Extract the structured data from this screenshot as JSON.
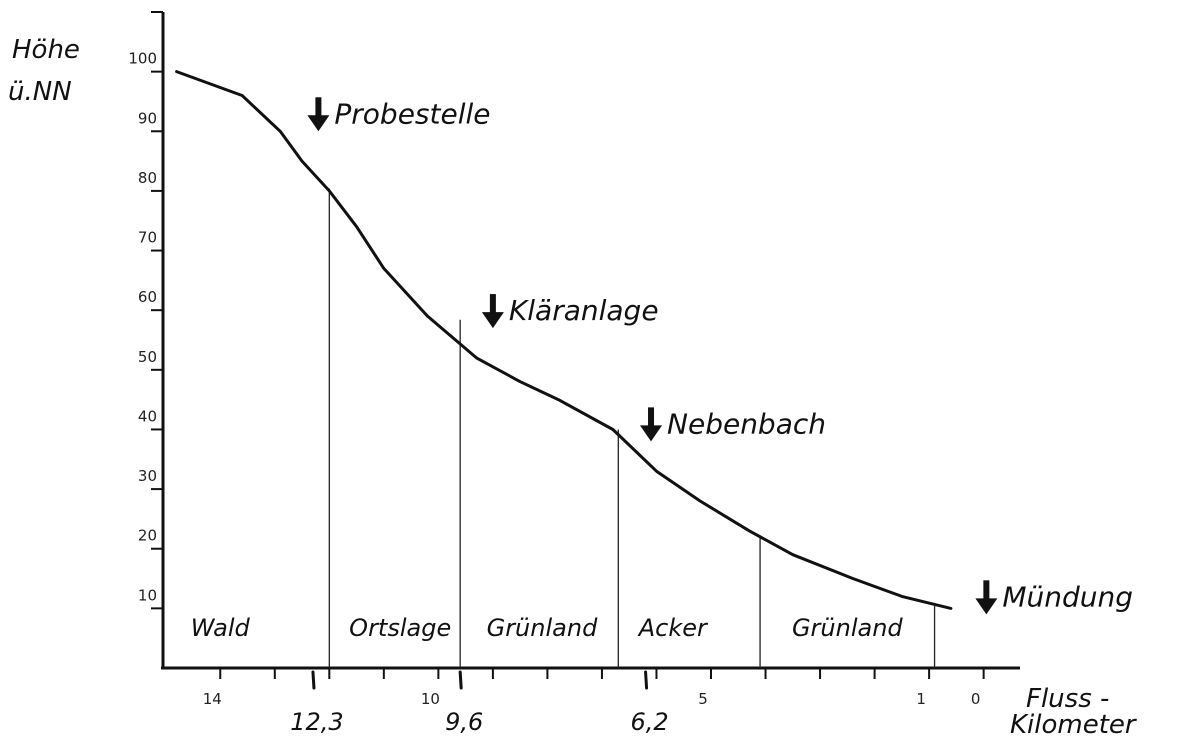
{
  "chart_data": {
    "type": "line",
    "ylabel_lines": [
      "Höhe",
      "ü.NN"
    ],
    "xlabel_lines": [
      "Fluss -",
      "Kilometer"
    ],
    "xlim": [
      15.05,
      -0.3
    ],
    "ylim": [
      0,
      110
    ],
    "y_ticks": [
      10,
      20,
      30,
      40,
      50,
      60,
      70,
      80,
      90,
      100
    ],
    "y_tick_labels": [
      "10",
      "20",
      "30",
      "40",
      "50",
      "60",
      "70",
      "80",
      "90",
      "100"
    ],
    "y_extra_tick": 110,
    "x_ticks_major": [
      14,
      10,
      5,
      1,
      0
    ],
    "x_tick_labels": [
      "14",
      "10",
      "5",
      "1",
      "0"
    ],
    "x_ticks_minor": [
      13,
      12,
      11,
      9,
      8,
      7,
      6,
      4,
      3,
      2
    ],
    "x_marks_handwritten": [
      12.3,
      9.6,
      6.2
    ],
    "x_marks_handwritten_labels": [
      "12,3",
      "9,6",
      "6,2"
    ],
    "series": [
      {
        "x": [
          14.8,
          13.6,
          12.9,
          12.5,
          12.0,
          11.5,
          11.0,
          10.2,
          9.3,
          8.5,
          7.8,
          6.8,
          6.0,
          5.2,
          4.3,
          3.5,
          2.4,
          1.5,
          0.6
        ],
        "y": [
          100,
          96,
          90,
          85,
          80,
          74,
          67,
          59,
          52,
          48,
          45,
          40,
          33,
          28,
          23,
          19,
          15,
          12,
          10
        ]
      }
    ],
    "boundaries": [
      {
        "x": 12.0,
        "y": 80.4
      },
      {
        "x": 9.6,
        "y": 58.4
      },
      {
        "x": 6.7,
        "y": 40.0
      },
      {
        "x": 4.1,
        "y": 21.8
      },
      {
        "x": 0.9,
        "y": 10.4
      }
    ],
    "land_use": [
      {
        "label": "Wald",
        "x": 14.0
      },
      {
        "label": "Ortslage",
        "x": 10.7
      },
      {
        "label": "Grünland",
        "x": 8.1
      },
      {
        "label": "Acker",
        "x": 5.7
      },
      {
        "label": "Grünland",
        "x": 2.5
      }
    ],
    "markers": [
      {
        "label": "Probestelle",
        "x": 12.2,
        "y": 90
      },
      {
        "label": "Kläranlage",
        "x": 9.0,
        "y": 57
      },
      {
        "label": "Nebenbach",
        "x": 6.1,
        "y": 38
      },
      {
        "label": "Mündung",
        "x": -0.05,
        "y": 9
      }
    ]
  }
}
